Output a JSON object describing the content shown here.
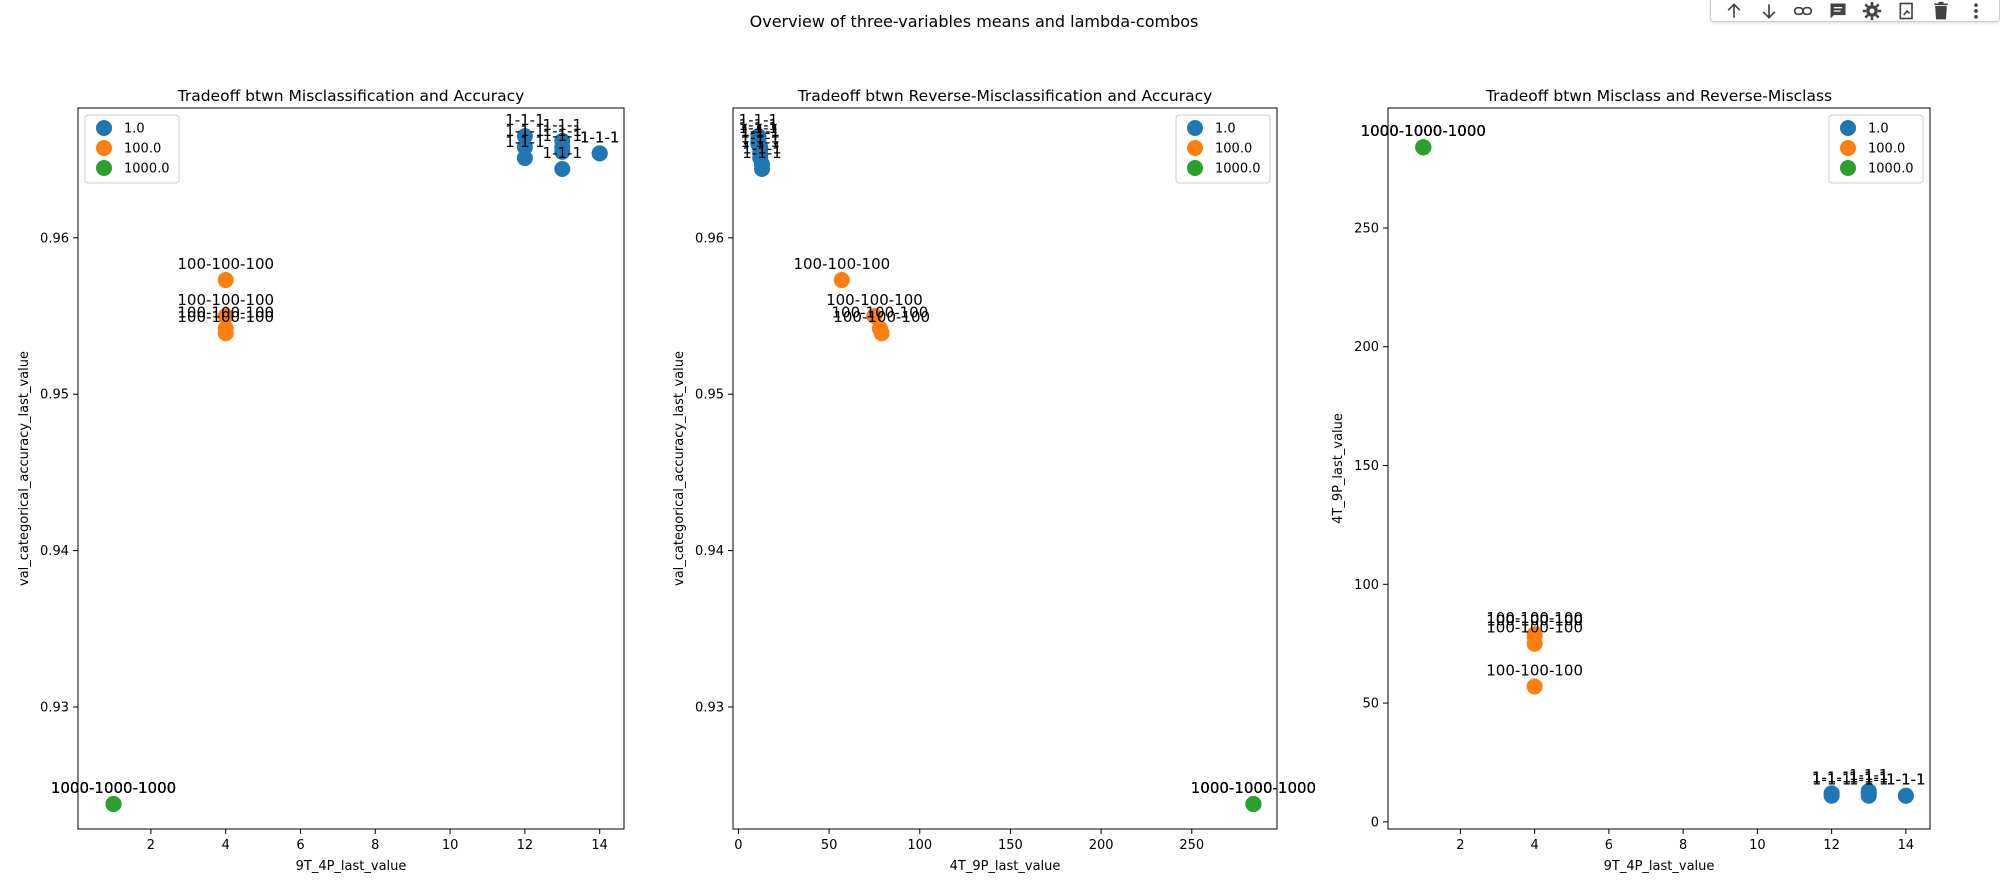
{
  "figure": {
    "suptitle": "Overview of three-variables means and lambda-combos",
    "colors": {
      "1.0": "#1f77b4",
      "100.0": "#ff7f0e",
      "1000.0": "#2ca02c"
    },
    "legend_labels": [
      "1.0",
      "100.0",
      "1000.0"
    ]
  },
  "toolbar": {
    "icons": [
      "arrow-up-icon",
      "arrow-down-icon",
      "link-icon",
      "comment-icon",
      "gear-icon",
      "image-edit-icon",
      "trash-icon",
      "more-vert-icon"
    ]
  },
  "chart_data": [
    {
      "type": "scatter",
      "title": "Tradeoff btwn Misclassification and Accuracy",
      "xlabel": "9T_4P_last_value",
      "ylabel": "val_categorical_accuracy_last_value",
      "xlim": [
        0.05,
        14.65
      ],
      "ylim": [
        0.9222,
        0.9683
      ],
      "xticks": [
        2,
        4,
        6,
        8,
        10,
        12,
        14
      ],
      "yticks": [
        0.93,
        0.94,
        0.95,
        0.96
      ],
      "ytick_labels": [
        "0.93",
        "0.94",
        "0.95",
        "0.96"
      ],
      "legend_position": "upper-left",
      "grid": false,
      "series": [
        {
          "name": "1.0",
          "label_text": "1-1-1",
          "points": [
            [
              12,
              0.9665
            ],
            [
              12,
              0.9658
            ],
            [
              12,
              0.9651
            ],
            [
              13,
              0.9662
            ],
            [
              13,
              0.9658
            ],
            [
              13,
              0.9655
            ],
            [
              13,
              0.9644
            ],
            [
              14,
              0.9654
            ],
            [
              14,
              0.9654
            ]
          ]
        },
        {
          "name": "100.0",
          "label_text": "100-100-100",
          "points": [
            [
              4,
              0.9573
            ],
            [
              4,
              0.955
            ],
            [
              4,
              0.9542
            ],
            [
              4,
              0.9539
            ]
          ]
        },
        {
          "name": "1000.0",
          "label_text": "1000-1000-1000",
          "points": [
            [
              1,
              0.9238
            ],
            [
              1,
              0.9238
            ],
            [
              1,
              0.9238
            ],
            [
              1,
              0.9238
            ]
          ]
        }
      ]
    },
    {
      "type": "scatter",
      "title": "Tradeoff btwn Reverse-Misclassification and Accuracy",
      "xlabel": "4T_9P_last_value",
      "ylabel": "val_categorical_accuracy_last_value",
      "xlim": [
        -3,
        297
      ],
      "ylim": [
        0.9222,
        0.9683
      ],
      "xticks": [
        0,
        50,
        100,
        150,
        200,
        250
      ],
      "yticks": [
        0.93,
        0.94,
        0.95,
        0.96
      ],
      "ytick_labels": [
        "0.93",
        "0.94",
        "0.95",
        "0.96"
      ],
      "legend_position": "upper-right",
      "grid": false,
      "series": [
        {
          "name": "1.0",
          "label_text": "1-1-1",
          "points": [
            [
              11,
              0.9665
            ],
            [
              11,
              0.966
            ],
            [
              12,
              0.9657
            ],
            [
              12,
              0.9654
            ],
            [
              12,
              0.9651
            ],
            [
              13,
              0.9647
            ],
            [
              13,
              0.9644
            ],
            [
              11,
              0.9662
            ],
            [
              12,
              0.9658
            ]
          ]
        },
        {
          "name": "100.0",
          "label_text": "100-100-100",
          "points": [
            [
              57,
              0.9573
            ],
            [
              75,
              0.955
            ],
            [
              78,
              0.9542
            ],
            [
              79,
              0.9539
            ]
          ]
        },
        {
          "name": "1000.0",
          "label_text": "1000-1000-1000",
          "points": [
            [
              284,
              0.9238
            ],
            [
              284,
              0.9238
            ],
            [
              284,
              0.9238
            ],
            [
              284,
              0.9238
            ]
          ]
        }
      ]
    },
    {
      "type": "scatter",
      "title": "Tradeoff btwn Misclass and Reverse-Misclass",
      "xlabel": "9T_4P_last_value",
      "ylabel": "4T_9P_last_value",
      "xlim": [
        0.05,
        14.65
      ],
      "ylim": [
        -3,
        300.5
      ],
      "xticks": [
        2,
        4,
        6,
        8,
        10,
        12,
        14
      ],
      "yticks": [
        0,
        50,
        100,
        150,
        200,
        250
      ],
      "ytick_labels": [
        "0",
        "50",
        "100",
        "150",
        "200",
        "250"
      ],
      "legend_position": "upper-right",
      "grid": false,
      "series": [
        {
          "name": "1.0",
          "label_text": "1-1-1",
          "points": [
            [
              12,
              12
            ],
            [
              12,
              11
            ],
            [
              12,
              12
            ],
            [
              13,
              12
            ],
            [
              13,
              11
            ],
            [
              13,
              13
            ],
            [
              13,
              12
            ],
            [
              14,
              11
            ],
            [
              14,
              11
            ]
          ]
        },
        {
          "name": "100.0",
          "label_text": "100-100-100",
          "points": [
            [
              4,
              57
            ],
            [
              4,
              75
            ],
            [
              4,
              78
            ],
            [
              4,
              79
            ]
          ]
        },
        {
          "name": "1000.0",
          "label_text": "1000-1000-1000",
          "points": [
            [
              1,
              284
            ],
            [
              1,
              284
            ],
            [
              1,
              284
            ],
            [
              1,
              284
            ]
          ]
        }
      ]
    }
  ]
}
